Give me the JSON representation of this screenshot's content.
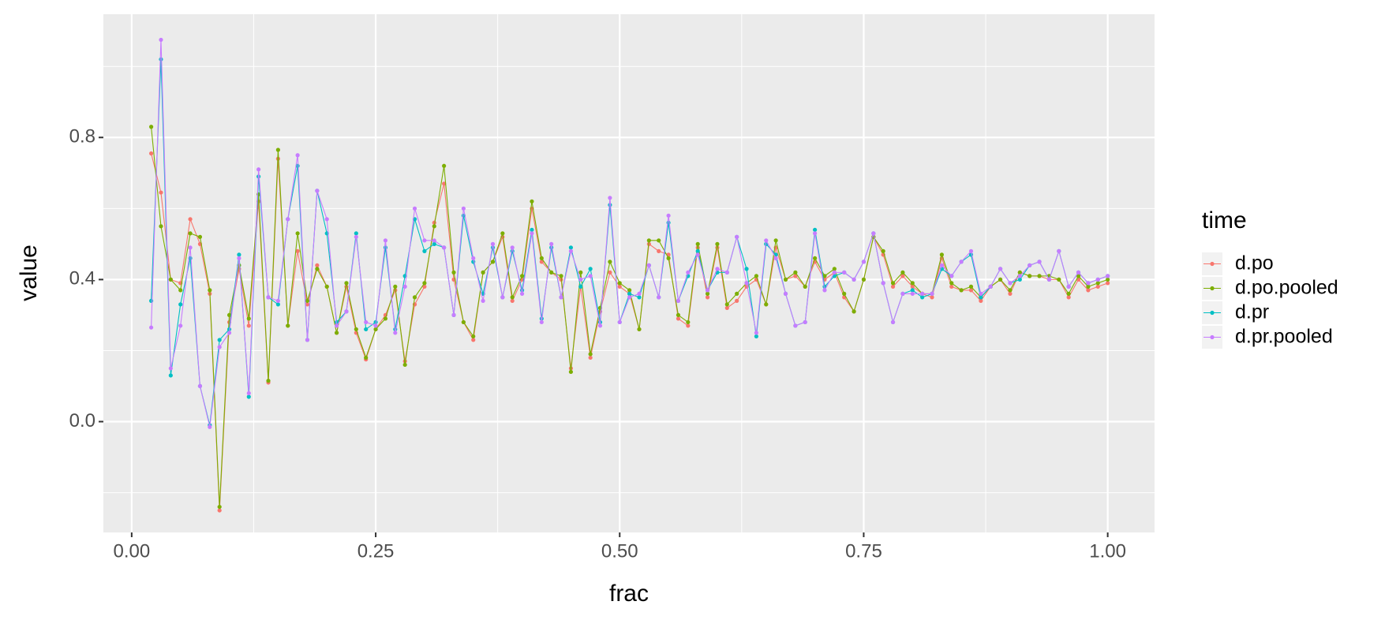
{
  "chart_data": {
    "type": "line",
    "x_label": "frac",
    "y_label": "value",
    "legend_title": "time",
    "legend_position": "right",
    "grid": true,
    "xlim": [
      -0.029,
      1.048
    ],
    "ylim": [
      -0.312,
      1.147
    ],
    "xticks": [
      {
        "value": 0,
        "label": "0.00"
      },
      {
        "value": 0.25,
        "label": "0.25"
      },
      {
        "value": 0.5,
        "label": "0.50"
      },
      {
        "value": 0.75,
        "label": "0.75"
      },
      {
        "value": 1,
        "label": "1.00"
      }
    ],
    "yticks": [
      {
        "value": 0,
        "label": "0.0"
      },
      0.4,
      0.8
    ],
    "x_minor_breaks": [
      0.125,
      0.375,
      0.625,
      0.875
    ],
    "y_minor_breaks": [
      -0.2,
      0.2,
      0.6,
      1.0
    ],
    "x": [
      0.02,
      0.03,
      0.04,
      0.05,
      0.06,
      0.07,
      0.08,
      0.09,
      0.1,
      0.11,
      0.12,
      0.13,
      0.14,
      0.15,
      0.16,
      0.17,
      0.18,
      0.19,
      0.2,
      0.21,
      0.22,
      0.23,
      0.24,
      0.25,
      0.26,
      0.27,
      0.28,
      0.29,
      0.3,
      0.31,
      0.32,
      0.33,
      0.34,
      0.35,
      0.36,
      0.37,
      0.38,
      0.39,
      0.4,
      0.41,
      0.42,
      0.43,
      0.44,
      0.45,
      0.46,
      0.47,
      0.48,
      0.49,
      0.5,
      0.51,
      0.52,
      0.53,
      0.54,
      0.55,
      0.56,
      0.57,
      0.58,
      0.59,
      0.6,
      0.61,
      0.62,
      0.63,
      0.64,
      0.65,
      0.66,
      0.67,
      0.68,
      0.69,
      0.7,
      0.71,
      0.72,
      0.73,
      0.74,
      0.75,
      0.76,
      0.77,
      0.78,
      0.79,
      0.8,
      0.81,
      0.82,
      0.83,
      0.84,
      0.85,
      0.86,
      0.87,
      0.88,
      0.89,
      0.9,
      0.91,
      0.92,
      0.93,
      0.94,
      0.95,
      0.96,
      0.97,
      0.98,
      0.99,
      1.0
    ],
    "series": [
      {
        "name": "d.po",
        "color": "#F8766D",
        "values": [
          0.755,
          0.645,
          0.4,
          0.39,
          0.57,
          0.5,
          0.36,
          -0.25,
          0.28,
          0.43,
          0.27,
          0.62,
          0.11,
          0.74,
          0.27,
          0.48,
          0.33,
          0.44,
          0.38,
          0.25,
          0.38,
          0.25,
          0.175,
          0.26,
          0.3,
          0.37,
          0.17,
          0.33,
          0.38,
          0.56,
          0.67,
          0.4,
          0.28,
          0.23,
          0.42,
          0.45,
          0.52,
          0.34,
          0.4,
          0.6,
          0.45,
          0.42,
          0.4,
          0.15,
          0.38,
          0.18,
          0.31,
          0.42,
          0.38,
          0.36,
          0.26,
          0.5,
          0.48,
          0.47,
          0.29,
          0.27,
          0.49,
          0.35,
          0.49,
          0.32,
          0.34,
          0.38,
          0.4,
          0.33,
          0.49,
          0.4,
          0.41,
          0.38,
          0.45,
          0.4,
          0.42,
          0.35,
          0.31,
          0.4,
          0.52,
          0.47,
          0.38,
          0.41,
          0.38,
          0.36,
          0.35,
          0.46,
          0.38,
          0.37,
          0.37,
          0.34,
          0.38,
          0.4,
          0.36,
          0.42,
          0.41,
          0.41,
          0.4,
          0.4,
          0.35,
          0.4,
          0.37,
          0.38,
          0.39
        ]
      },
      {
        "name": "d.po.pooled",
        "color": "#7CAE00",
        "values": [
          0.83,
          0.55,
          0.4,
          0.37,
          0.53,
          0.52,
          0.37,
          -0.24,
          0.3,
          0.44,
          0.29,
          0.64,
          0.115,
          0.765,
          0.27,
          0.53,
          0.34,
          0.43,
          0.38,
          0.25,
          0.39,
          0.26,
          0.18,
          0.26,
          0.29,
          0.38,
          0.16,
          0.35,
          0.39,
          0.55,
          0.72,
          0.42,
          0.28,
          0.24,
          0.42,
          0.45,
          0.53,
          0.35,
          0.41,
          0.62,
          0.46,
          0.42,
          0.41,
          0.14,
          0.42,
          0.19,
          0.32,
          0.45,
          0.39,
          0.37,
          0.26,
          0.51,
          0.51,
          0.46,
          0.3,
          0.28,
          0.5,
          0.36,
          0.5,
          0.33,
          0.36,
          0.39,
          0.41,
          0.33,
          0.51,
          0.4,
          0.42,
          0.38,
          0.46,
          0.41,
          0.43,
          0.36,
          0.31,
          0.4,
          0.52,
          0.48,
          0.39,
          0.42,
          0.39,
          0.36,
          0.36,
          0.47,
          0.39,
          0.37,
          0.38,
          0.35,
          0.38,
          0.4,
          0.37,
          0.42,
          0.41,
          0.41,
          0.41,
          0.4,
          0.36,
          0.41,
          0.38,
          0.39,
          0.4
        ]
      },
      {
        "name": "d.pr",
        "color": "#00BFC4",
        "values": [
          0.34,
          1.02,
          0.13,
          0.33,
          0.46,
          0.1,
          -0.01,
          0.23,
          0.26,
          0.47,
          0.07,
          0.69,
          0.35,
          0.33,
          0.57,
          0.72,
          0.23,
          0.65,
          0.53,
          0.28,
          0.31,
          0.53,
          0.26,
          0.28,
          0.49,
          0.26,
          0.41,
          0.57,
          0.48,
          0.5,
          0.49,
          0.3,
          0.58,
          0.45,
          0.36,
          0.49,
          0.35,
          0.48,
          0.37,
          0.54,
          0.29,
          0.49,
          0.35,
          0.49,
          0.38,
          0.43,
          0.28,
          0.61,
          0.28,
          0.36,
          0.35,
          0.44,
          0.35,
          0.56,
          0.34,
          0.41,
          0.48,
          0.37,
          0.42,
          0.42,
          0.52,
          0.43,
          0.24,
          0.5,
          0.47,
          0.36,
          0.27,
          0.28,
          0.54,
          0.38,
          0.41,
          0.42,
          0.4,
          0.45,
          0.53,
          0.39,
          0.28,
          0.36,
          0.37,
          0.35,
          0.36,
          0.43,
          0.41,
          0.45,
          0.47,
          0.35,
          0.38,
          0.43,
          0.39,
          0.4,
          0.44,
          0.45,
          0.4,
          0.48,
          0.38,
          0.42,
          0.39,
          0.4,
          0.41
        ]
      },
      {
        "name": "d.pr.pooled",
        "color": "#C77CFF",
        "values": [
          0.265,
          1.075,
          0.15,
          0.27,
          0.49,
          0.1,
          -0.015,
          0.21,
          0.25,
          0.46,
          0.08,
          0.71,
          0.35,
          0.34,
          0.57,
          0.75,
          0.23,
          0.65,
          0.57,
          0.27,
          0.31,
          0.52,
          0.28,
          0.27,
          0.51,
          0.25,
          0.38,
          0.6,
          0.51,
          0.51,
          0.49,
          0.3,
          0.6,
          0.46,
          0.34,
          0.5,
          0.35,
          0.49,
          0.36,
          0.53,
          0.28,
          0.5,
          0.35,
          0.48,
          0.4,
          0.41,
          0.27,
          0.63,
          0.28,
          0.35,
          0.36,
          0.44,
          0.35,
          0.58,
          0.34,
          0.42,
          0.47,
          0.37,
          0.43,
          0.42,
          0.52,
          0.39,
          0.25,
          0.51,
          0.46,
          0.36,
          0.27,
          0.28,
          0.53,
          0.37,
          0.42,
          0.42,
          0.4,
          0.45,
          0.53,
          0.39,
          0.28,
          0.36,
          0.36,
          0.36,
          0.36,
          0.44,
          0.41,
          0.45,
          0.48,
          0.36,
          0.38,
          0.43,
          0.39,
          0.41,
          0.44,
          0.45,
          0.4,
          0.48,
          0.38,
          0.42,
          0.39,
          0.4,
          0.41
        ]
      }
    ]
  }
}
